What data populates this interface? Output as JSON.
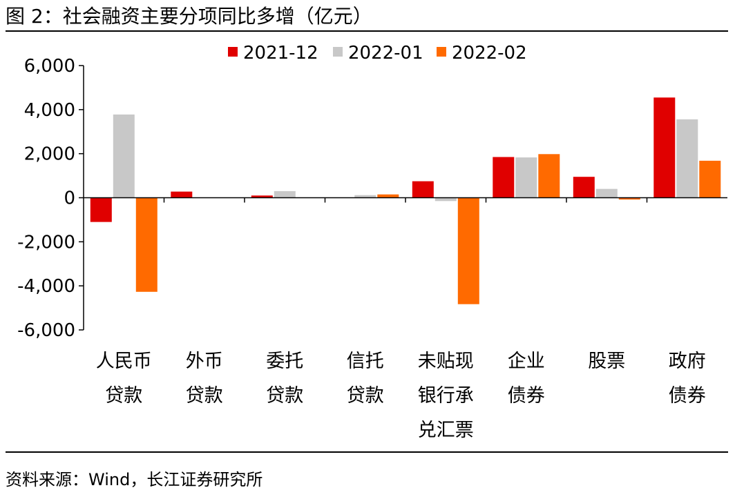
{
  "figure": {
    "title": "图 2：社会融资主要分项同比多增（亿元）",
    "source": "资料来源：Wind，长江证券研究所"
  },
  "chart_data": {
    "type": "bar",
    "title": "图 2：社会融资主要分项同比多增（亿元）",
    "xlabel": "",
    "ylabel": "",
    "ylim": [
      -6000,
      6000
    ],
    "yticks": [
      6000,
      4000,
      2000,
      0,
      -2000,
      -4000,
      -6000
    ],
    "ytick_labels": [
      "6,000",
      "4,000",
      "2,000",
      "0",
      "-2,000",
      "-4,000",
      "-6,000"
    ],
    "grid": false,
    "legend_position": "top",
    "categories": [
      [
        "人民币",
        "贷款"
      ],
      [
        "外币",
        "贷款"
      ],
      [
        "委托",
        "贷款"
      ],
      [
        "信托",
        "贷款"
      ],
      [
        "未贴现",
        "银行承",
        "兑汇票"
      ],
      [
        "企业",
        "债券"
      ],
      [
        "股票"
      ],
      [
        "政府",
        "债券"
      ]
    ],
    "series": [
      {
        "name": "2021-12",
        "color": "#e00000",
        "values": [
          -1100,
          280,
          100,
          0,
          750,
          1850,
          950,
          4550
        ]
      },
      {
        "name": "2022-01",
        "color": "#c8c8c8",
        "values": [
          3780,
          0,
          300,
          120,
          -150,
          1830,
          400,
          3560
        ]
      },
      {
        "name": "2022-02",
        "color": "#ff6a00",
        "values": [
          -4270,
          0,
          0,
          150,
          -4830,
          1980,
          -80,
          1680
        ]
      }
    ]
  }
}
